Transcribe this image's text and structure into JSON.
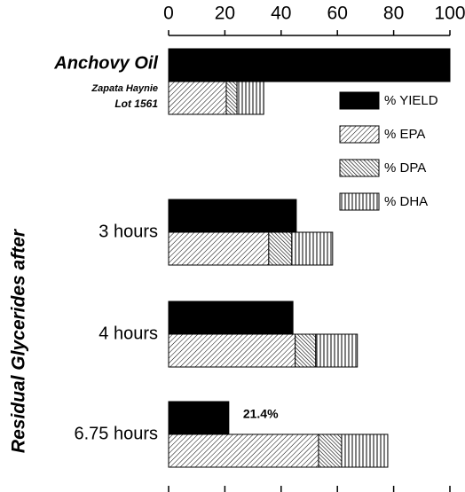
{
  "chart_data": {
    "type": "hbar",
    "ylabel": "Residual Glycerides after",
    "categories": [
      "Anchovy Oil",
      "3 hours",
      "4 hours",
      "6.75 hours"
    ],
    "annotations": [
      "Zapata Haynie",
      "Lot 1561"
    ],
    "series": [
      {
        "name": "% YIELD",
        "color": "#000000",
        "pattern": "solid",
        "values": [
          100,
          45.4,
          44.2,
          21.4
        ],
        "value_labels": [
          null,
          null,
          null,
          "21.4%"
        ]
      },
      {
        "name": "% EPA",
        "color": "#000000",
        "pattern": "diagonal",
        "stack": true,
        "values": [
          20.5,
          35.6,
          45,
          53.3
        ]
      },
      {
        "name": "% DPA",
        "color": "#000000",
        "pattern": "backdiagonal",
        "stack": true,
        "values": [
          3.8,
          8.2,
          7.3,
          8.2
        ]
      },
      {
        "name": "% DHA",
        "color": "#000000",
        "pattern": "vertical",
        "stack": true,
        "values": [
          9.5,
          14.5,
          14.8,
          16.4
        ]
      }
    ],
    "xlim": [
      0,
      100
    ],
    "xticks": [
      0,
      20,
      40,
      60,
      80,
      100
    ],
    "legend": "upper right"
  }
}
